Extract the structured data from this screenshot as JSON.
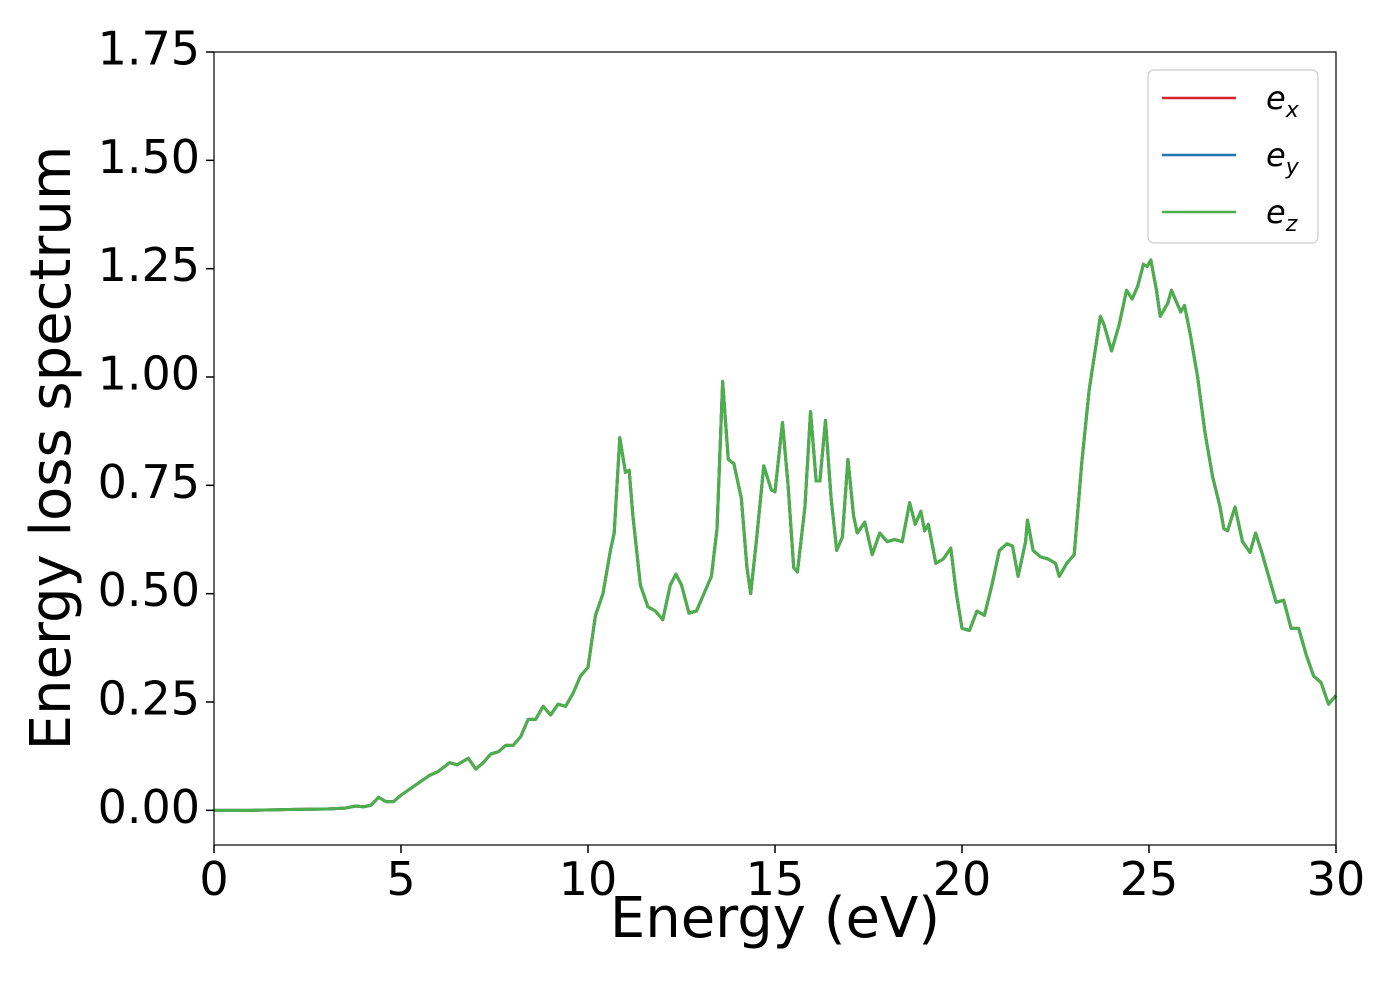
{
  "chart_data": {
    "type": "line",
    "xlabel": "Energy (eV)",
    "ylabel": "Energy loss spectrum",
    "xlim": [
      0,
      30
    ],
    "ylim": [
      -0.08,
      1.75
    ],
    "xticks": [
      0,
      5,
      10,
      15,
      20,
      25,
      30
    ],
    "yticks": [
      {
        "value": 0,
        "label": "0.00"
      },
      {
        "value": 0.25,
        "label": "0.25"
      },
      {
        "value": 0.5,
        "label": "0.50"
      },
      {
        "value": 0.75,
        "label": "0.75"
      },
      {
        "value": 1,
        "label": "1.00"
      },
      {
        "value": 1.25,
        "label": "1.25"
      },
      {
        "value": 1.5,
        "label": "1.50"
      },
      {
        "value": 1.75,
        "label": "1.75"
      }
    ],
    "grid": false,
    "legend": "upper right",
    "x": [
      0,
      1,
      2,
      3,
      3.5,
      3.8,
      4.0,
      4.2,
      4.4,
      4.6,
      4.8,
      5.0,
      5.25,
      5.5,
      5.75,
      6.0,
      6.3,
      6.5,
      6.8,
      7.0,
      7.2,
      7.4,
      7.6,
      7.8,
      8.0,
      8.2,
      8.4,
      8.6,
      8.8,
      9.0,
      9.2,
      9.4,
      9.6,
      9.8,
      10.0,
      10.2,
      10.4,
      10.6,
      10.7,
      10.85,
      11.0,
      11.1,
      11.2,
      11.4,
      11.6,
      11.8,
      12.0,
      12.2,
      12.35,
      12.5,
      12.7,
      12.9,
      13.1,
      13.3,
      13.45,
      13.6,
      13.75,
      13.9,
      14.1,
      14.25,
      14.35,
      14.5,
      14.7,
      14.9,
      15.0,
      15.2,
      15.35,
      15.5,
      15.6,
      15.8,
      15.95,
      16.1,
      16.2,
      16.35,
      16.5,
      16.65,
      16.8,
      16.95,
      17.1,
      17.2,
      17.4,
      17.6,
      17.8,
      18.0,
      18.2,
      18.4,
      18.6,
      18.75,
      18.9,
      19.0,
      19.1,
      19.3,
      19.5,
      19.7,
      19.85,
      20.0,
      20.2,
      20.4,
      20.6,
      20.8,
      21.0,
      21.2,
      21.35,
      21.5,
      21.7,
      21.75,
      21.9,
      22.1,
      22.3,
      22.5,
      22.6,
      22.8,
      23.0,
      23.2,
      23.4,
      23.7,
      23.8,
      24.0,
      24.2,
      24.4,
      24.55,
      24.7,
      24.85,
      24.95,
      25.05,
      25.2,
      25.3,
      25.5,
      25.6,
      25.85,
      25.95,
      26.1,
      26.3,
      26.5,
      26.7,
      26.9,
      27.0,
      27.1,
      27.3,
      27.5,
      27.7,
      27.85,
      28.0,
      28.2,
      28.4,
      28.6,
      28.8,
      29.0,
      29.2,
      29.4,
      29.6,
      29.8,
      30.0
    ],
    "series": [
      {
        "name": "ex",
        "color": "#d62728",
        "values": [
          0,
          0,
          0.002,
          0.003,
          0.005,
          0.01,
          0.008,
          0.012,
          0.03,
          0.02,
          0.02,
          0.035,
          0.05,
          0.065,
          0.08,
          0.09,
          0.11,
          0.105,
          0.12,
          0.095,
          0.11,
          0.13,
          0.135,
          0.15,
          0.15,
          0.17,
          0.21,
          0.21,
          0.24,
          0.22,
          0.245,
          0.24,
          0.27,
          0.31,
          0.33,
          0.45,
          0.5,
          0.6,
          0.64,
          0.86,
          0.78,
          0.785,
          0.68,
          0.52,
          0.47,
          0.46,
          0.44,
          0.52,
          0.545,
          0.52,
          0.455,
          0.46,
          0.5,
          0.54,
          0.65,
          0.99,
          0.81,
          0.8,
          0.72,
          0.56,
          0.5,
          0.62,
          0.795,
          0.74,
          0.735,
          0.895,
          0.75,
          0.56,
          0.55,
          0.7,
          0.92,
          0.76,
          0.76,
          0.9,
          0.72,
          0.6,
          0.63,
          0.81,
          0.68,
          0.64,
          0.665,
          0.59,
          0.64,
          0.62,
          0.625,
          0.62,
          0.71,
          0.66,
          0.69,
          0.645,
          0.66,
          0.57,
          0.58,
          0.605,
          0.5,
          0.42,
          0.415,
          0.46,
          0.45,
          0.52,
          0.6,
          0.615,
          0.61,
          0.54,
          0.62,
          0.67,
          0.6,
          0.585,
          0.58,
          0.57,
          0.54,
          0.57,
          0.59,
          0.8,
          0.97,
          1.14,
          1.12,
          1.06,
          1.12,
          1.2,
          1.18,
          1.21,
          1.26,
          1.255,
          1.27,
          1.2,
          1.14,
          1.17,
          1.2,
          1.15,
          1.165,
          1.1,
          1.0,
          0.87,
          0.77,
          0.7,
          0.65,
          0.645,
          0.7,
          0.62,
          0.595,
          0.64,
          0.6,
          0.54,
          0.48,
          0.485,
          0.42,
          0.42,
          0.36,
          0.31,
          0.295,
          0.245,
          0.265
        ]
      },
      {
        "name": "ey",
        "color": "#1f77b4",
        "values": [
          0,
          0,
          0.002,
          0.003,
          0.005,
          0.01,
          0.008,
          0.012,
          0.03,
          0.02,
          0.02,
          0.035,
          0.05,
          0.065,
          0.08,
          0.09,
          0.11,
          0.105,
          0.12,
          0.095,
          0.11,
          0.13,
          0.135,
          0.15,
          0.15,
          0.17,
          0.21,
          0.21,
          0.24,
          0.22,
          0.245,
          0.24,
          0.27,
          0.31,
          0.33,
          0.45,
          0.5,
          0.6,
          0.64,
          0.86,
          0.78,
          0.785,
          0.68,
          0.52,
          0.47,
          0.46,
          0.44,
          0.52,
          0.545,
          0.52,
          0.455,
          0.46,
          0.5,
          0.54,
          0.65,
          0.99,
          0.81,
          0.8,
          0.72,
          0.56,
          0.5,
          0.62,
          0.795,
          0.74,
          0.735,
          0.895,
          0.75,
          0.56,
          0.55,
          0.7,
          0.92,
          0.76,
          0.76,
          0.9,
          0.72,
          0.6,
          0.63,
          0.81,
          0.68,
          0.64,
          0.665,
          0.59,
          0.64,
          0.62,
          0.625,
          0.62,
          0.71,
          0.66,
          0.69,
          0.645,
          0.66,
          0.57,
          0.58,
          0.605,
          0.5,
          0.42,
          0.415,
          0.46,
          0.45,
          0.52,
          0.6,
          0.615,
          0.61,
          0.54,
          0.62,
          0.67,
          0.6,
          0.585,
          0.58,
          0.57,
          0.54,
          0.57,
          0.59,
          0.8,
          0.97,
          1.14,
          1.12,
          1.06,
          1.12,
          1.2,
          1.18,
          1.21,
          1.26,
          1.255,
          1.27,
          1.2,
          1.14,
          1.17,
          1.2,
          1.15,
          1.165,
          1.1,
          1.0,
          0.87,
          0.77,
          0.7,
          0.65,
          0.645,
          0.7,
          0.62,
          0.595,
          0.64,
          0.6,
          0.54,
          0.48,
          0.485,
          0.42,
          0.42,
          0.36,
          0.31,
          0.295,
          0.245,
          0.265
        ]
      },
      {
        "name": "ez",
        "color": "#4daf4a",
        "values": [
          0,
          0,
          0.002,
          0.003,
          0.005,
          0.01,
          0.008,
          0.012,
          0.03,
          0.02,
          0.02,
          0.035,
          0.05,
          0.065,
          0.08,
          0.09,
          0.11,
          0.105,
          0.12,
          0.095,
          0.11,
          0.13,
          0.135,
          0.15,
          0.15,
          0.17,
          0.21,
          0.21,
          0.24,
          0.22,
          0.245,
          0.24,
          0.27,
          0.31,
          0.33,
          0.45,
          0.5,
          0.6,
          0.64,
          0.86,
          0.78,
          0.785,
          0.68,
          0.52,
          0.47,
          0.46,
          0.44,
          0.52,
          0.545,
          0.52,
          0.455,
          0.46,
          0.5,
          0.54,
          0.65,
          0.99,
          0.81,
          0.8,
          0.72,
          0.56,
          0.5,
          0.62,
          0.795,
          0.74,
          0.735,
          0.895,
          0.75,
          0.56,
          0.55,
          0.7,
          0.92,
          0.76,
          0.76,
          0.9,
          0.72,
          0.6,
          0.63,
          0.81,
          0.68,
          0.64,
          0.665,
          0.59,
          0.64,
          0.62,
          0.625,
          0.62,
          0.71,
          0.66,
          0.69,
          0.645,
          0.66,
          0.57,
          0.58,
          0.605,
          0.5,
          0.42,
          0.415,
          0.46,
          0.45,
          0.52,
          0.6,
          0.615,
          0.61,
          0.54,
          0.62,
          0.67,
          0.6,
          0.585,
          0.58,
          0.57,
          0.54,
          0.57,
          0.59,
          0.8,
          0.97,
          1.14,
          1.12,
          1.06,
          1.12,
          1.2,
          1.18,
          1.21,
          1.26,
          1.255,
          1.27,
          1.2,
          1.14,
          1.17,
          1.2,
          1.15,
          1.165,
          1.1,
          1.0,
          0.87,
          0.77,
          0.7,
          0.65,
          0.645,
          0.7,
          0.62,
          0.595,
          0.64,
          0.6,
          0.54,
          0.48,
          0.485,
          0.42,
          0.42,
          0.36,
          0.31,
          0.295,
          0.245,
          0.265
        ]
      }
    ]
  }
}
